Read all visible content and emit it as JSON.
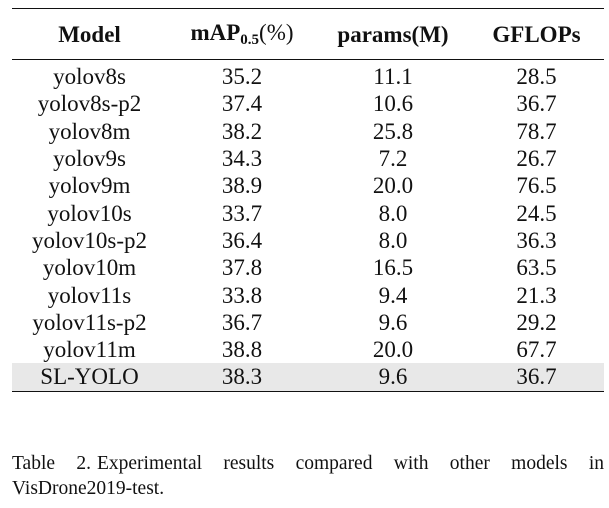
{
  "table": {
    "headers": {
      "model": "Model",
      "map_main": "mAP",
      "map_sub": "0.5",
      "map_unit": "(%)",
      "params": "params(M)",
      "gflops": "GFLOPs"
    },
    "rows": [
      {
        "model": "yolov8s",
        "map": "35.2",
        "params": "11.1",
        "gflops": "28.5"
      },
      {
        "model": "yolov8s-p2",
        "map": "37.4",
        "params": "10.6",
        "gflops": "36.7"
      },
      {
        "model": "yolov8m",
        "map": "38.2",
        "params": "25.8",
        "gflops": "78.7"
      },
      {
        "model": "yolov9s",
        "map": "34.3",
        "params": "7.2",
        "gflops": "26.7"
      },
      {
        "model": "yolov9m",
        "map": "38.9",
        "params": "20.0",
        "gflops": "76.5"
      },
      {
        "model": "yolov10s",
        "map": "33.7",
        "params": "8.0",
        "gflops": "24.5"
      },
      {
        "model": "yolov10s-p2",
        "map": "36.4",
        "params": "8.0",
        "gflops": "36.3"
      },
      {
        "model": "yolov10m",
        "map": "37.8",
        "params": "16.5",
        "gflops": "63.5"
      },
      {
        "model": "yolov11s",
        "map": "33.8",
        "params": "9.4",
        "gflops": "21.3"
      },
      {
        "model": "yolov11s-p2",
        "map": "36.7",
        "params": "9.6",
        "gflops": "29.2"
      },
      {
        "model": "yolov11m",
        "map": "38.8",
        "params": "20.0",
        "gflops": "67.7"
      },
      {
        "model": "SL-YOLO",
        "map": "38.3",
        "params": "9.6",
        "gflops": "36.7",
        "highlighted": true
      }
    ],
    "highlight_color": "#e8e8e8"
  },
  "caption": {
    "label": "Table 2.",
    "text": "Experimental results compared with other models in VisDrone2019-test."
  }
}
